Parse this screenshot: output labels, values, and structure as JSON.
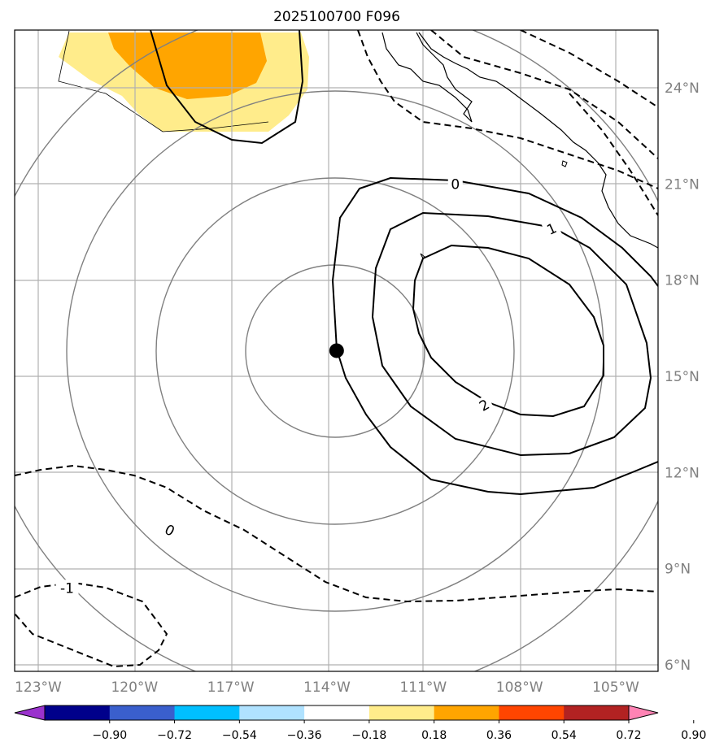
{
  "chart_data": {
    "type": "map-contour",
    "title": "2025100700 F096",
    "projection": "polar-stereographic",
    "lon_range": [
      -124,
      -104
    ],
    "lat_range": [
      6,
      26
    ],
    "lon_ticks": [
      {
        "value": -123,
        "label": "123°W"
      },
      {
        "value": -120,
        "label": "120°W"
      },
      {
        "value": -117,
        "label": "117°W"
      },
      {
        "value": -114,
        "label": "114°W"
      },
      {
        "value": -111,
        "label": "111°W"
      },
      {
        "value": -108,
        "label": "108°W"
      },
      {
        "value": -105,
        "label": "105°W"
      }
    ],
    "lat_ticks": [
      {
        "value": 6,
        "label": "6°N"
      },
      {
        "value": 9,
        "label": "9°N"
      },
      {
        "value": 12,
        "label": "12°N"
      },
      {
        "value": 15,
        "label": "15°N"
      },
      {
        "value": 18,
        "label": "18°N"
      },
      {
        "value": 21,
        "label": "21°N"
      },
      {
        "value": 24,
        "label": "24°N"
      }
    ],
    "storm_center": {
      "lon": -113.7,
      "lat": 15.8
    },
    "range_rings_deg": [
      2.5,
      5,
      7.5,
      10
    ],
    "contour_labels": [
      {
        "text": "0",
        "lon": -110.0,
        "lat": 21.0,
        "rotation": 0
      },
      {
        "text": "1",
        "lon": -107.0,
        "lat": 19.6,
        "rotation": -25
      },
      {
        "text": "2",
        "lon": -109.1,
        "lat": 14.1,
        "rotation": -30
      },
      {
        "text": "0",
        "lon": -118.9,
        "lat": 10.2,
        "rotation": 28
      },
      {
        "text": "-1",
        "lon": -122.1,
        "lat": 8.4,
        "rotation": 0
      }
    ],
    "colorbar": {
      "ticks": [
        "−0.90",
        "−0.72",
        "−0.54",
        "−0.36",
        "−0.18",
        "0.18",
        "0.36",
        "0.54",
        "0.72",
        "0.90"
      ],
      "bounds": [
        -0.9,
        -0.72,
        -0.54,
        -0.36,
        -0.18,
        0.18,
        0.36,
        0.54,
        0.72,
        0.9
      ],
      "colors": [
        "#9a32cd",
        "#00008b",
        "#3a5fcd",
        "#00bfff",
        "#b0e2ff",
        "#ffffff",
        "#ffec8b",
        "#ffa500",
        "#ff4500",
        "#b22222",
        "#ff83b4"
      ]
    }
  }
}
